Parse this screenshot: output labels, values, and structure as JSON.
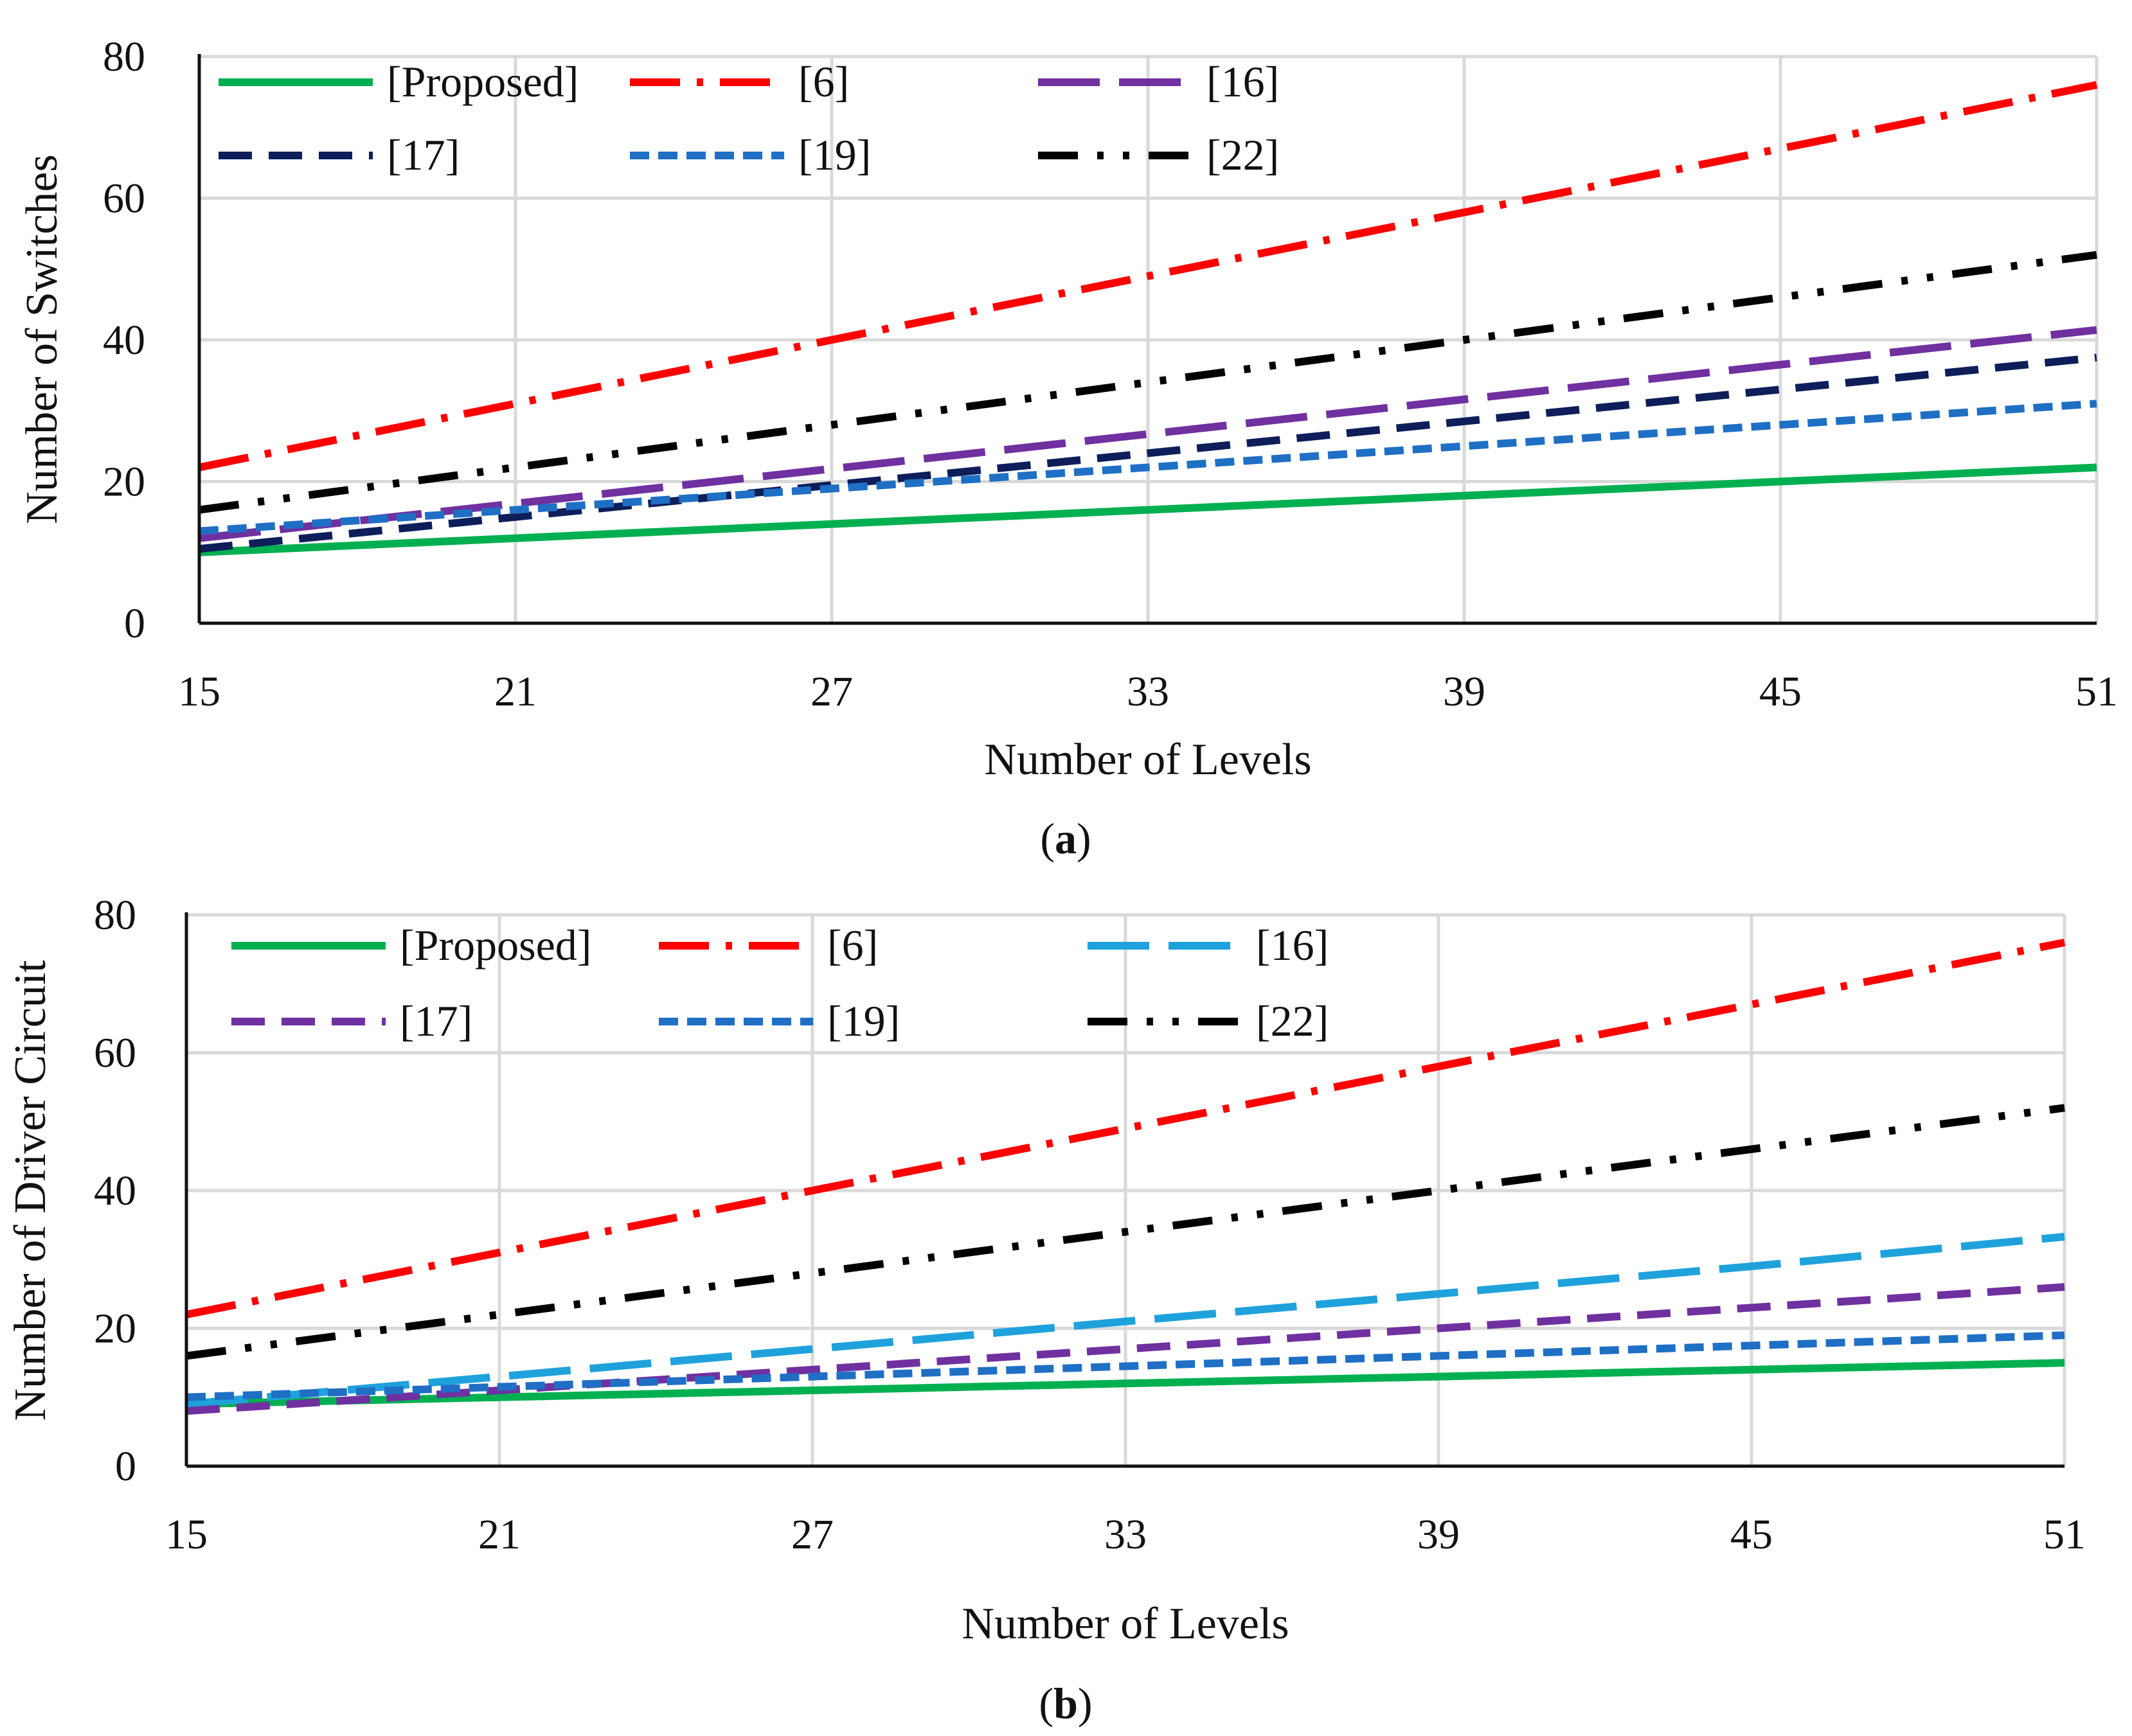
{
  "chart_data": [
    {
      "type": "line",
      "panel_label": "a",
      "title": "",
      "xlabel": "Number of Levels",
      "ylabel": "Number of Switches",
      "x": [
        15,
        21,
        27,
        33,
        39,
        45,
        51
      ],
      "xticks": [
        "15",
        "21",
        "27",
        "33",
        "39",
        "45",
        "51"
      ],
      "yticks": [
        "0",
        "20",
        "40",
        "60",
        "80"
      ],
      "xlim": [
        15,
        51
      ],
      "ylim": [
        0,
        80
      ],
      "grid": true,
      "legend": "top-left, 3 columns",
      "series": [
        {
          "name": "[Proposed]",
          "values": [
            10,
            12,
            14,
            16,
            18,
            20,
            22
          ],
          "color": "#00B050",
          "dash": "solid"
        },
        {
          "name": "[6]",
          "values": [
            22,
            31,
            40,
            49,
            58,
            67,
            76
          ],
          "color": "#FF0000",
          "dash": "dashdot"
        },
        {
          "name": "[16]",
          "values": [
            12,
            16.9,
            21.8,
            26.7,
            31.6,
            36.5,
            41.4
          ],
          "color": "#7030A0",
          "dash": "longdash"
        },
        {
          "name": "[17]",
          "values": [
            10.5,
            15,
            19.5,
            24,
            28.5,
            33,
            37.5
          ],
          "color": "#0D1E5A",
          "dash": "dash"
        },
        {
          "name": "[19]",
          "values": [
            13,
            16,
            19,
            22,
            25,
            28,
            31
          ],
          "color": "#1F6FC5",
          "dash": "shortdash"
        },
        {
          "name": "[22]",
          "values": [
            16,
            22,
            28,
            34,
            40,
            46,
            52
          ],
          "color": "#000000",
          "dash": "dashdotdot"
        }
      ]
    },
    {
      "type": "line",
      "panel_label": "b",
      "title": "",
      "xlabel": "Number of Levels",
      "ylabel": "Number of Driver Circuit",
      "x": [
        15,
        21,
        27,
        33,
        39,
        45,
        51
      ],
      "xticks": [
        "15",
        "21",
        "27",
        "33",
        "39",
        "45",
        "51"
      ],
      "yticks": [
        "0",
        "20",
        "40",
        "60",
        "80"
      ],
      "xlim": [
        15,
        51
      ],
      "ylim": [
        0,
        80
      ],
      "grid": true,
      "legend": "top-left, 3 columns",
      "series": [
        {
          "name": "[Proposed]",
          "values": [
            9,
            10,
            11,
            12,
            13,
            14,
            15
          ],
          "color": "#00B050",
          "dash": "solid"
        },
        {
          "name": "[6]",
          "values": [
            22,
            31,
            40,
            49,
            58,
            67,
            76
          ],
          "color": "#FF0000",
          "dash": "dashdot"
        },
        {
          "name": "[16]",
          "values": [
            9,
            13,
            17,
            21,
            25,
            29,
            33.3
          ],
          "color": "#1FA2DC",
          "dash": "longdash"
        },
        {
          "name": "[17]",
          "values": [
            8,
            11,
            14,
            17,
            20,
            23,
            26
          ],
          "color": "#7030A0",
          "dash": "dash"
        },
        {
          "name": "[19]",
          "values": [
            10,
            11.5,
            13,
            14.5,
            16,
            17.5,
            19
          ],
          "color": "#1F6FC5",
          "dash": "shortdash"
        },
        {
          "name": "[22]",
          "values": [
            16,
            22,
            28,
            34,
            40,
            46,
            52
          ],
          "color": "#000000",
          "dash": "dashdotdot"
        }
      ]
    }
  ]
}
